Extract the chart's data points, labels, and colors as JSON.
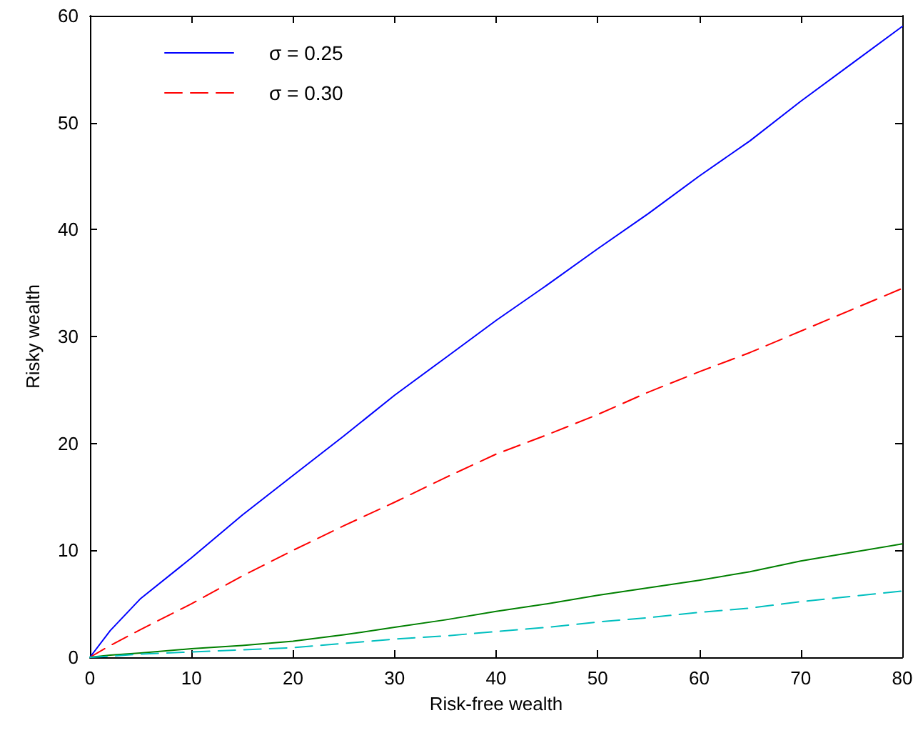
{
  "chart_data": {
    "type": "line",
    "xlabel": "Risk-free wealth",
    "ylabel": "Risky wealth",
    "x": [
      0,
      2,
      5,
      10,
      15,
      20,
      25,
      30,
      35,
      40,
      45,
      50,
      55,
      60,
      65,
      70,
      75,
      80
    ],
    "series": [
      {
        "name": "σ = 0.25",
        "color": "#0000ff",
        "line_style": "solid",
        "values": [
          0,
          2.5,
          5.5,
          9.3,
          13.3,
          17,
          20.7,
          24.5,
          28,
          31.5,
          34.8,
          38.2,
          41.5,
          45,
          48.3,
          52,
          55.5,
          59
        ]
      },
      {
        "name": "σ = 0.30",
        "color": "#ff0000",
        "line_style": "dashed",
        "values": [
          0,
          1.1,
          2.6,
          5,
          7.6,
          10,
          12.3,
          14.5,
          16.8,
          19,
          20.8,
          22.7,
          24.8,
          26.7,
          28.5,
          30.5,
          32.5,
          34.5
        ]
      },
      {
        "color": "#008000",
        "line_style": "solid",
        "values": [
          0,
          0.2,
          0.4,
          0.8,
          1.1,
          1.5,
          2.1,
          2.8,
          3.5,
          4.3,
          5,
          5.8,
          6.5,
          7.2,
          8,
          9,
          9.8,
          10.6
        ]
      },
      {
        "color": "#00bfbf",
        "line_style": "dashed",
        "values": [
          0,
          0.1,
          0.3,
          0.5,
          0.7,
          0.9,
          1.3,
          1.7,
          2,
          2.4,
          2.8,
          3.3,
          3.7,
          4.2,
          4.6,
          5.2,
          5.7,
          6.2
        ]
      }
    ],
    "xlim": [
      0,
      80
    ],
    "xticks": [
      0,
      10,
      20,
      30,
      40,
      50,
      60,
      70,
      80
    ],
    "ylim": [
      0,
      60
    ],
    "yticks": [
      0,
      10,
      20,
      30,
      40,
      50,
      60
    ],
    "grid": false,
    "legend": "top left",
    "marker": "none"
  }
}
